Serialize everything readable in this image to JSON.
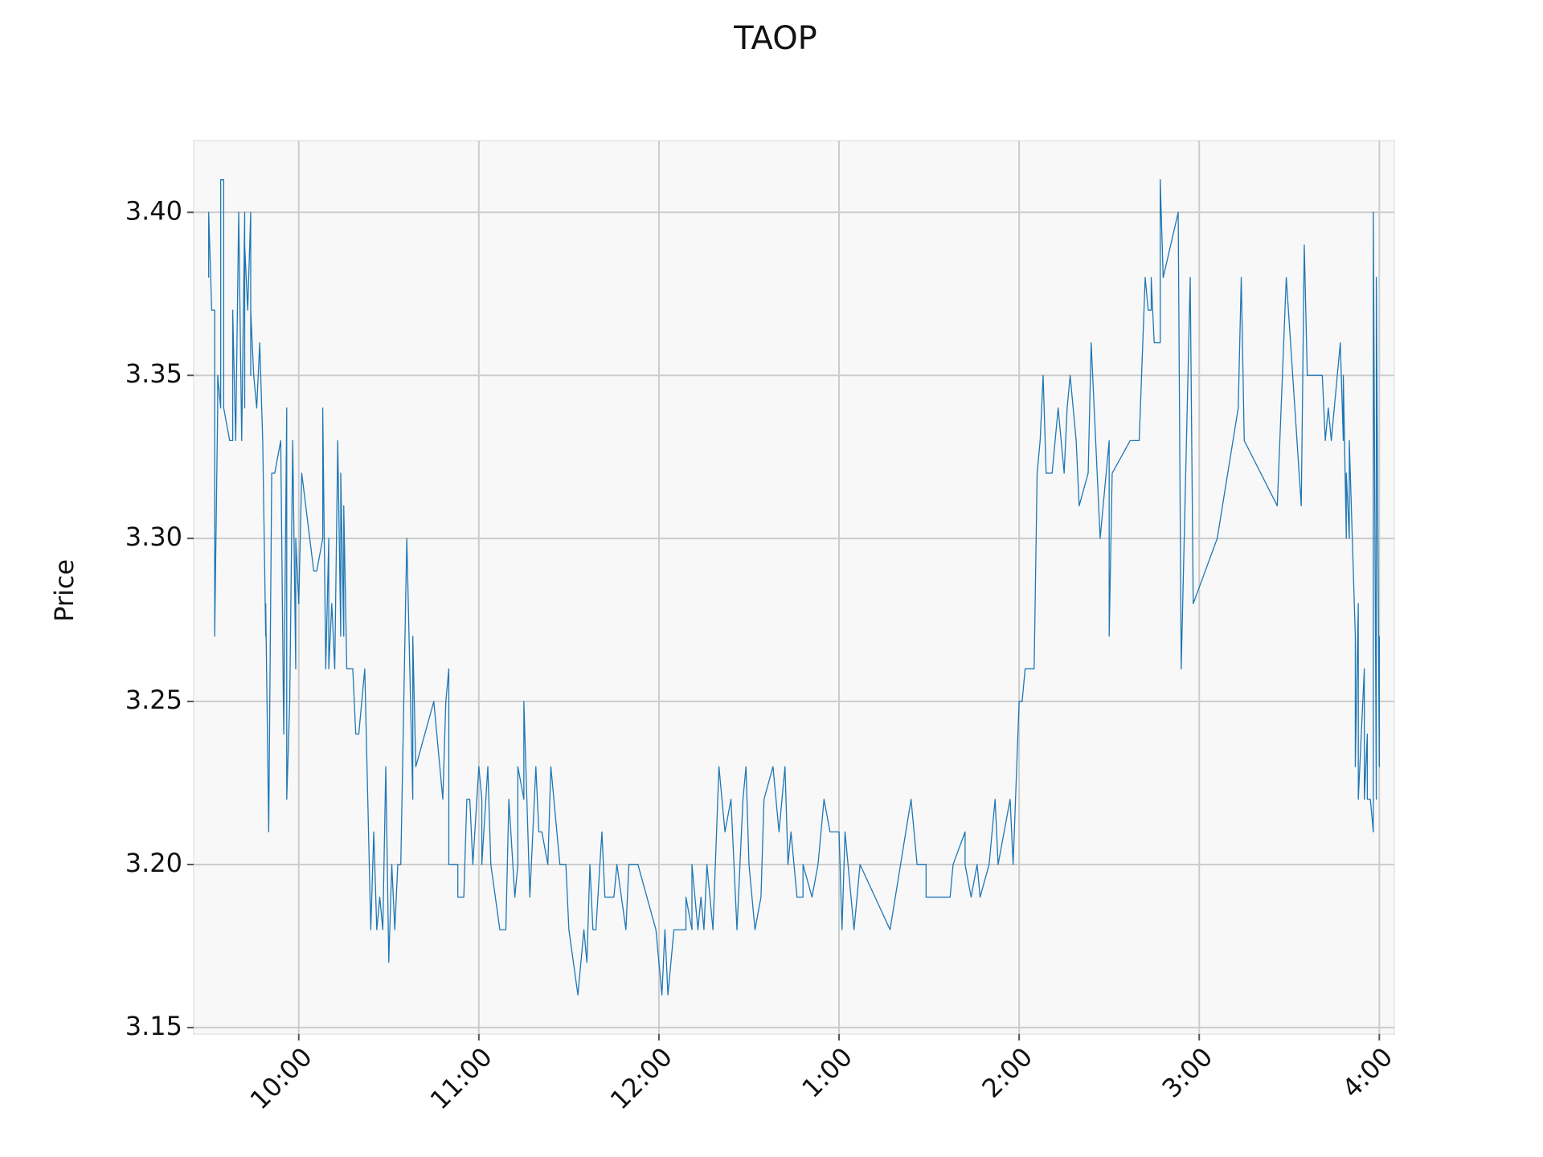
{
  "chart_data": {
    "type": "line",
    "title": "TAOP",
    "ylabel": "Price",
    "grid": true,
    "xlim": [
      565,
      965
    ],
    "ylim": [
      3.148,
      3.422
    ],
    "xticks": [
      {
        "value": 600,
        "label": "10:00"
      },
      {
        "value": 660,
        "label": "11:00"
      },
      {
        "value": 720,
        "label": "12:00"
      },
      {
        "value": 780,
        "label": "1:00"
      },
      {
        "value": 840,
        "label": "2:00"
      },
      {
        "value": 900,
        "label": "3:00"
      },
      {
        "value": 960,
        "label": "4:00"
      }
    ],
    "yticks": [
      3.15,
      {
        "value": 3.2,
        "label": "3.20"
      },
      3.25,
      {
        "value": 3.3,
        "label": "3.30"
      },
      3.35,
      {
        "value": 3.4,
        "label": "3.40"
      }
    ],
    "series": [
      {
        "color": "#1f77b4",
        "x": [
          570,
          570,
          571,
          572,
          572,
          573,
          573,
          574,
          574,
          575,
          575,
          577,
          578,
          578,
          579,
          580,
          581,
          582,
          582,
          582,
          583,
          584,
          584,
          584,
          585,
          586,
          587,
          588,
          589,
          589,
          590,
          591,
          592,
          594,
          595,
          596,
          596,
          597,
          598,
          599,
          599,
          600,
          601,
          605,
          606,
          608,
          608,
          609,
          610,
          610,
          611,
          612,
          613,
          614,
          614,
          615,
          615,
          616,
          618,
          619,
          620,
          622,
          624,
          625,
          626,
          627,
          628,
          629,
          630,
          631,
          632,
          633,
          634,
          636,
          638,
          638,
          639,
          645,
          648,
          649,
          650,
          650,
          653,
          653,
          655,
          656,
          657,
          658,
          660,
          661,
          661,
          663,
          664,
          667,
          669,
          670,
          672,
          673,
          673,
          675,
          675,
          676,
          677,
          679,
          680,
          681,
          683,
          684,
          686,
          687,
          689,
          690,
          693,
          695,
          696,
          697,
          698,
          699,
          701,
          702,
          705,
          706,
          709,
          710,
          713,
          719,
          721,
          722,
          723,
          725,
          729,
          729,
          731,
          731,
          733,
          734,
          735,
          736,
          738,
          740,
          742,
          744,
          746,
          748,
          749,
          750,
          752,
          754,
          755,
          758,
          760,
          762,
          763,
          764,
          766,
          768,
          768,
          771,
          773,
          775,
          777,
          780,
          781,
          782,
          784,
          785,
          787,
          797,
          804,
          806,
          809,
          809,
          817,
          818,
          822,
          822,
          824,
          826,
          827,
          830,
          832,
          833,
          835,
          837,
          838,
          840,
          841,
          842,
          845,
          846,
          847,
          848,
          849,
          851,
          853,
          855,
          856,
          857,
          858,
          859,
          860,
          863,
          864,
          867,
          870,
          870,
          871,
          877,
          880,
          882,
          883,
          884,
          884,
          885,
          887,
          887,
          888,
          893,
          894,
          897,
          898,
          906,
          913,
          914,
          915,
          926,
          929,
          934,
          935,
          936,
          941,
          942,
          943,
          944,
          947,
          948,
          948,
          949,
          949,
          950,
          950,
          951,
          952,
          952,
          953,
          953,
          954,
          955,
          955,
          956,
          956,
          957,
          958,
          958,
          959,
          959,
          960,
          960
        ],
        "values": [
          3.38,
          3.4,
          3.37,
          3.37,
          3.27,
          3.34,
          3.35,
          3.34,
          3.41,
          3.41,
          3.34,
          3.33,
          3.33,
          3.37,
          3.33,
          3.4,
          3.33,
          3.4,
          3.34,
          3.39,
          3.37,
          3.4,
          3.35,
          3.37,
          3.35,
          3.34,
          3.36,
          3.33,
          3.27,
          3.28,
          3.21,
          3.32,
          3.32,
          3.33,
          3.24,
          3.34,
          3.22,
          3.25,
          3.33,
          3.26,
          3.3,
          3.28,
          3.32,
          3.29,
          3.29,
          3.3,
          3.34,
          3.26,
          3.3,
          3.26,
          3.28,
          3.26,
          3.33,
          3.27,
          3.32,
          3.27,
          3.31,
          3.26,
          3.26,
          3.24,
          3.24,
          3.26,
          3.18,
          3.21,
          3.18,
          3.19,
          3.18,
          3.23,
          3.17,
          3.2,
          3.18,
          3.2,
          3.2,
          3.3,
          3.22,
          3.27,
          3.23,
          3.25,
          3.22,
          3.25,
          3.26,
          3.2,
          3.2,
          3.19,
          3.19,
          3.22,
          3.22,
          3.2,
          3.23,
          3.22,
          3.2,
          3.23,
          3.2,
          3.18,
          3.18,
          3.22,
          3.19,
          3.2,
          3.23,
          3.22,
          3.25,
          3.22,
          3.19,
          3.23,
          3.21,
          3.21,
          3.2,
          3.23,
          3.21,
          3.2,
          3.2,
          3.18,
          3.16,
          3.18,
          3.17,
          3.2,
          3.18,
          3.18,
          3.21,
          3.19,
          3.19,
          3.2,
          3.18,
          3.2,
          3.2,
          3.18,
          3.16,
          3.18,
          3.16,
          3.18,
          3.18,
          3.19,
          3.18,
          3.2,
          3.18,
          3.19,
          3.18,
          3.2,
          3.18,
          3.23,
          3.21,
          3.22,
          3.18,
          3.22,
          3.23,
          3.2,
          3.18,
          3.19,
          3.22,
          3.23,
          3.21,
          3.23,
          3.2,
          3.21,
          3.19,
          3.19,
          3.2,
          3.19,
          3.2,
          3.22,
          3.21,
          3.21,
          3.18,
          3.21,
          3.19,
          3.18,
          3.2,
          3.18,
          3.22,
          3.2,
          3.2,
          3.19,
          3.19,
          3.2,
          3.21,
          3.2,
          3.19,
          3.2,
          3.19,
          3.2,
          3.22,
          3.2,
          3.21,
          3.22,
          3.2,
          3.25,
          3.25,
          3.26,
          3.26,
          3.32,
          3.33,
          3.35,
          3.32,
          3.32,
          3.34,
          3.32,
          3.34,
          3.35,
          3.34,
          3.33,
          3.31,
          3.32,
          3.36,
          3.3,
          3.33,
          3.27,
          3.32,
          3.33,
          3.33,
          3.38,
          3.37,
          3.37,
          3.38,
          3.36,
          3.36,
          3.41,
          3.38,
          3.4,
          3.26,
          3.38,
          3.28,
          3.3,
          3.34,
          3.38,
          3.33,
          3.31,
          3.38,
          3.31,
          3.39,
          3.35,
          3.35,
          3.33,
          3.34,
          3.33,
          3.36,
          3.33,
          3.35,
          3.3,
          3.32,
          3.3,
          3.33,
          3.3,
          3.27,
          3.23,
          3.28,
          3.22,
          3.24,
          3.26,
          3.22,
          3.24,
          3.22,
          3.22,
          3.21,
          3.4,
          3.22,
          3.38,
          3.23,
          3.27
        ]
      }
    ]
  }
}
